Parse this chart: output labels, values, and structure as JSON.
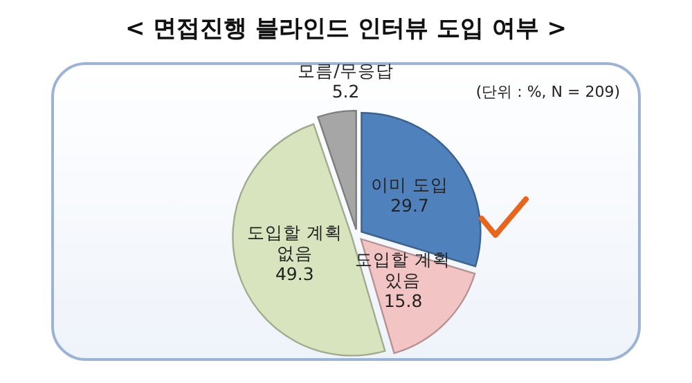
{
  "chart_data": {
    "type": "pie",
    "title": "< 면접진행 블라인드 인터뷰 도입 여부 >",
    "categories": [
      "이미 도입",
      "도입할 계획 있음",
      "도입할 계획 없음",
      "모름/무응답"
    ],
    "values": [
      29.7,
      15.8,
      49.3,
      5.2
    ],
    "colors": [
      "#4f81bd",
      "#f2c4c4",
      "#d7e4bd",
      "#a6a6a6"
    ],
    "data_labels": true,
    "annotations": [
      "(단위 : %, N = 209)"
    ]
  }
}
